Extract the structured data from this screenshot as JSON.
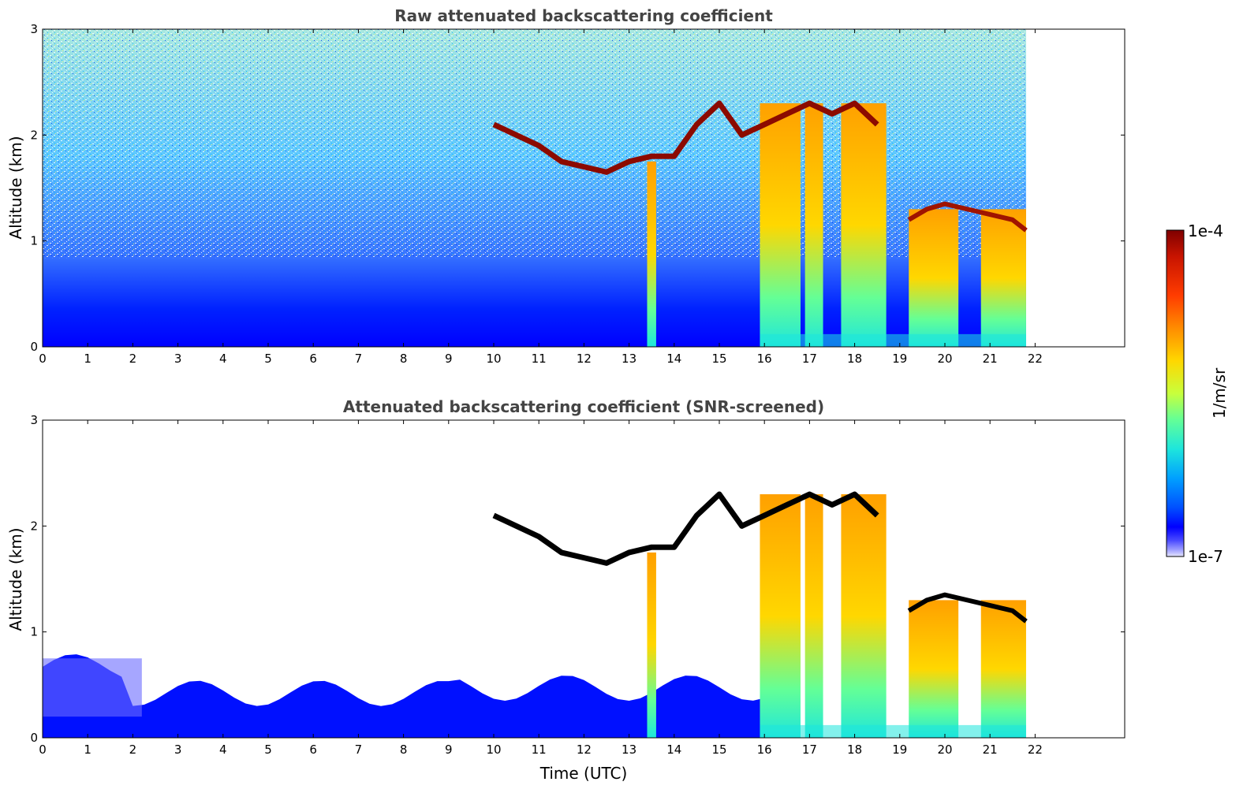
{
  "figure": {
    "xlabel": "Time (UTC)"
  },
  "chart_data": [
    {
      "type": "heatmap",
      "title": "Raw attenuated backscattering coefficient",
      "xlabel": "",
      "ylabel": "Altitude (km)",
      "xlim": [
        0,
        24
      ],
      "ylim": [
        0,
        3
      ],
      "x_ticks": [
        "0",
        "1",
        "2",
        "3",
        "4",
        "5",
        "6",
        "7",
        "8",
        "9",
        "10",
        "11",
        "12",
        "13",
        "14",
        "15",
        "16",
        "17",
        "18",
        "19",
        "20",
        "21",
        "22"
      ],
      "y_ticks": [
        "0",
        "1",
        "2",
        "3"
      ],
      "data_end_time": 21.8,
      "cloud_layer": {
        "time": [
          10.0,
          10.5,
          11.0,
          11.5,
          12.0,
          12.5,
          13.0,
          13.5,
          14.0,
          14.5,
          15.0,
          15.5,
          16.0,
          16.5,
          17.0,
          17.5,
          18.0,
          18.5
        ],
        "altitude_km": [
          2.1,
          2.0,
          1.9,
          1.75,
          1.7,
          1.65,
          1.75,
          1.8,
          1.8,
          2.1,
          2.3,
          2.0,
          2.1,
          2.2,
          2.3,
          2.2,
          2.3,
          2.1
        ]
      },
      "low_cloud_layer": {
        "time": [
          19.2,
          19.6,
          20.0,
          20.5,
          21.0,
          21.5,
          21.8
        ],
        "altitude_km": [
          1.2,
          1.3,
          1.35,
          1.3,
          1.25,
          1.2,
          1.1
        ]
      },
      "precip_shafts": [
        {
          "t0": 13.4,
          "t1": 13.6
        },
        {
          "t0": 15.9,
          "t1": 16.8
        },
        {
          "t0": 16.9,
          "t1": 17.3
        },
        {
          "t0": 17.7,
          "t1": 18.7
        },
        {
          "t0": 19.2,
          "t1": 20.3
        },
        {
          "t0": 20.8,
          "t1": 21.8
        }
      ]
    },
    {
      "type": "heatmap",
      "title": "Attenuated backscattering coefficient (SNR-screened)",
      "xlabel": "Time (UTC)",
      "ylabel": "Altitude (km)",
      "xlim": [
        0,
        24
      ],
      "ylim": [
        0,
        3
      ],
      "x_ticks": [
        "0",
        "1",
        "2",
        "3",
        "4",
        "5",
        "6",
        "7",
        "8",
        "9",
        "10",
        "11",
        "12",
        "13",
        "14",
        "15",
        "16",
        "17",
        "18",
        "19",
        "20",
        "21",
        "22"
      ],
      "y_ticks": [
        "0",
        "1",
        "2",
        "3"
      ],
      "data_end_time": 21.8
    }
  ],
  "colorbar": {
    "label": "1/m/sr",
    "max_label": "1e-4",
    "min_label": "1e-7",
    "colors": [
      "#7f0000",
      "#c81400",
      "#ff3c00",
      "#ff8c00",
      "#ffd700",
      "#c8ff3c",
      "#64ff96",
      "#1ee6dc",
      "#00a0ff",
      "#0050ff",
      "#0000ff",
      "#4848ff",
      "#a0a0ff",
      "#e6e6ff"
    ]
  }
}
